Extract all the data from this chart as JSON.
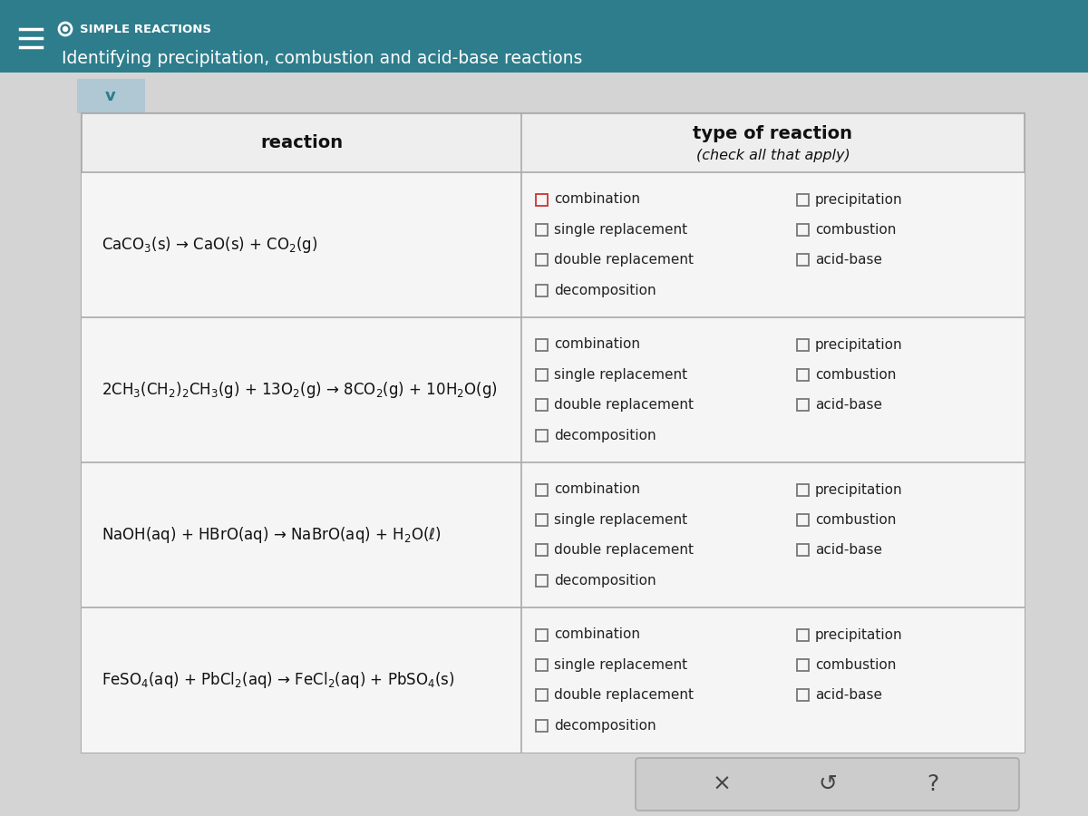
{
  "header_bg": "#2e7d8c",
  "header_text_color": "#ffffff",
  "title_small": "SIMPLE REACTIONS",
  "title_large": "Identifying precipitation, combustion and acid-base reactions",
  "col1_header": "reaction",
  "col2_header_line1": "type of reaction",
  "col2_header_line2": "(check all that apply)",
  "reactions": [
    "CaCO$_3$(s) → CaO(s) + CO$_2$(g)",
    "2CH$_3$(CH$_2$)$_2$CH$_3$(g) + 13O$_2$(g) → 8CO$_2$(g) + 10H$_2$O(g)",
    "NaOH(aq) + HBrO(aq) → NaBrO(aq) + H$_2$O(ℓ)",
    "FeSO$_4$(aq) + PbCl$_2$(aq) → FeCl$_2$(aq) + PbSO$_4$(s)"
  ],
  "checkboxes_left": [
    "combination",
    "single replacement",
    "double replacement",
    "decomposition"
  ],
  "checkboxes_right": [
    "precipitation",
    "combustion",
    "acid-base"
  ],
  "page_bg": "#c8c8c8",
  "content_bg": "#d4d4d4",
  "table_outer_bg": "#e8e8e8",
  "table_header_bg": "#eeeeee",
  "table_row_bg": "#f5f5f5",
  "table_border": "#aaaaaa",
  "btn_bg": "#cccccc",
  "btn_border": "#aaaaaa",
  "highlight_row": 0,
  "highlight_cb": 0
}
